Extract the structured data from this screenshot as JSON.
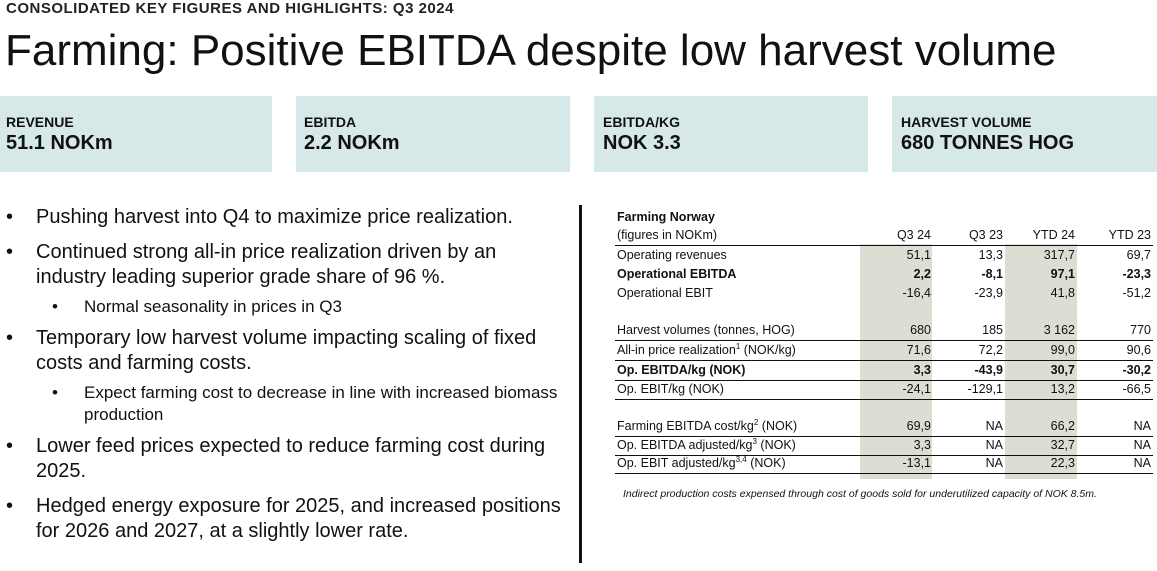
{
  "eyebrow": "CONSOLIDATED KEY FIGURES AND HIGHLIGHTS: Q3 2024",
  "title": "Farming: Positive EBITDA despite low harvest volume",
  "kpis": [
    {
      "label": "REVENUE",
      "value": "51.1 NOKm"
    },
    {
      "label": "EBITDA",
      "value": "2.2 NOKm"
    },
    {
      "label": "EBITDA/KG",
      "value": "NOK 3.3"
    },
    {
      "label": "HARVEST VOLUME",
      "value": "680 TONNES HOG"
    }
  ],
  "bullets": {
    "b1": "Pushing harvest into Q4 to maximize price realization.",
    "b2": "Continued strong all-in price realization driven by an industry leading superior grade share of 96 %.",
    "b2_sub": "Normal seasonality in prices in Q3",
    "b3": "Temporary low harvest volume impacting scaling of fixed costs and farming costs.",
    "b3_sub": "Expect farming cost to decrease in line with increased biomass production",
    "b4": "Lower feed prices expected to reduce farming cost during 2025.",
    "b5": "Hedged energy exposure for 2025, and increased positions for 2026 and 2027, at a slightly lower rate.",
    "marker": "•"
  },
  "table": {
    "title": "Farming Norway",
    "subtitle": "(figures in NOKm)",
    "headers": [
      "Q3 24",
      "Q3 23",
      "YTD 24",
      "YTD 23"
    ],
    "rows": {
      "r1": {
        "label": "Operating revenues",
        "v": [
          "51,1",
          "13,3",
          "317,7",
          "69,7"
        ]
      },
      "r2": {
        "label": "Operational EBITDA",
        "v": [
          "2,2",
          "-8,1",
          "97,1",
          "-23,3"
        ]
      },
      "r3": {
        "label": "Operational EBIT",
        "v": [
          "-16,4",
          "-23,9",
          "41,8",
          "-51,2"
        ]
      },
      "r4": {
        "label": "Harvest volumes (tonnes, HOG)",
        "v": [
          "680",
          "185",
          "3 162",
          "770"
        ]
      },
      "r5": {
        "label_pre": "All-in price realization",
        "sup": "1",
        "label_post": " (NOK/kg)",
        "v": [
          "71,6",
          "72,2",
          "99,0",
          "90,6"
        ]
      },
      "r6": {
        "label": "Op. EBITDA/kg (NOK)",
        "v": [
          "3,3",
          "-43,9",
          "30,7",
          "-30,2"
        ]
      },
      "r7": {
        "label": "Op. EBIT/kg (NOK)",
        "v": [
          "-24,1",
          "-129,1",
          "13,2",
          "-66,5"
        ]
      },
      "r8": {
        "label_pre": "Farming EBITDA cost/kg",
        "sup": "2",
        "label_post": " (NOK)",
        "v": [
          "69,9",
          "NA",
          "66,2",
          "NA"
        ]
      },
      "r9": {
        "label_pre": "Op. EBITDA adjusted/kg",
        "sup": "3",
        "label_post": " (NOK)",
        "v": [
          "3,3",
          "NA",
          "32,7",
          "NA"
        ]
      },
      "r10": {
        "label_pre": "Op. EBIT adjusted/kg",
        "sup": "3,4",
        "label_post": " (NOK)",
        "v": [
          "-13,1",
          "NA",
          "22,3",
          "NA"
        ]
      }
    },
    "footnote": "Indirect production costs expensed through cost of goods sold for underutilized capacity of NOK 8.5m."
  }
}
